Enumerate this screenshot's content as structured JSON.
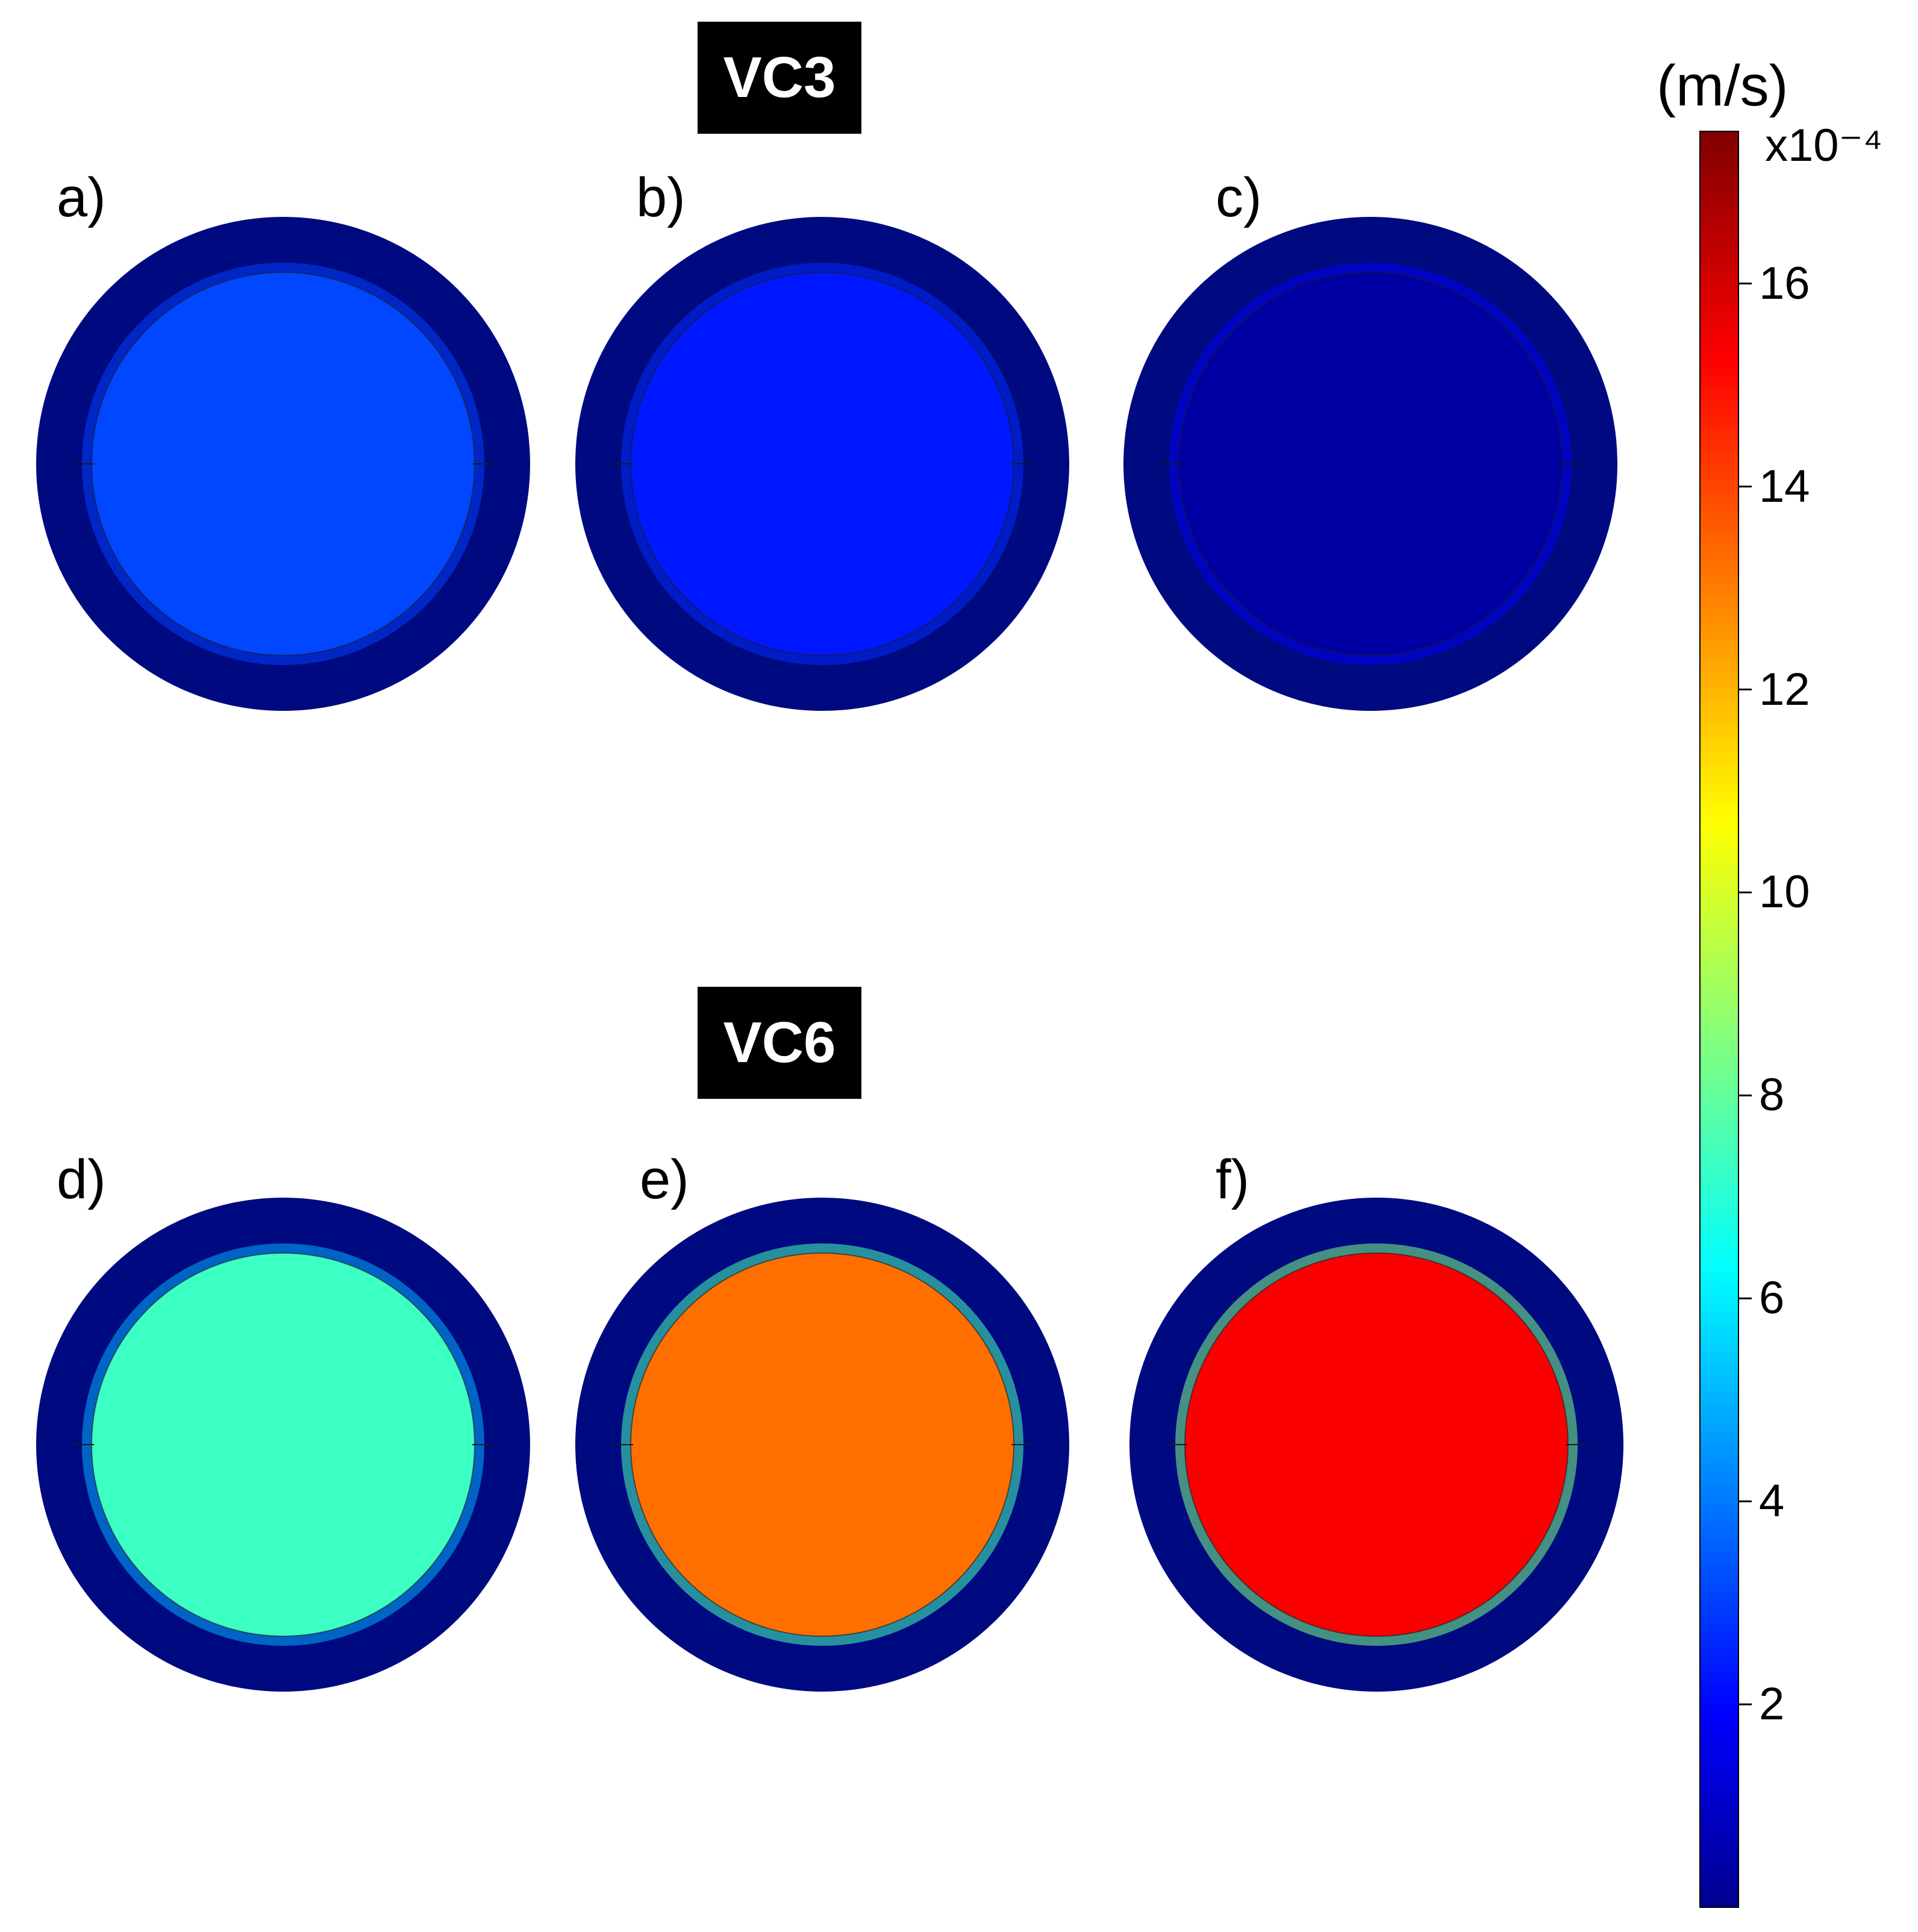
{
  "groups": {
    "vc3": "VC3",
    "vc6": "VC6"
  },
  "panels": [
    {
      "letter": "a)",
      "value": 3.4
    },
    {
      "letter": "b)",
      "value": 2.6
    },
    {
      "letter": "c)",
      "value": 0.6
    },
    {
      "letter": "d)",
      "value": 7.6
    },
    {
      "letter": "e)",
      "value": 13.4
    },
    {
      "letter": "f)",
      "value": 15.4
    }
  ],
  "colorbar": {
    "unit": "(m/s)",
    "exponent": "x10⁻⁴",
    "min": 0,
    "max": 17.5,
    "ticks": [
      "2",
      "4",
      "6",
      "8",
      "10",
      "12",
      "14",
      "16"
    ],
    "colormap": "jet"
  },
  "colors": {
    "outer_ring": "#000a80",
    "background": "#ffffff"
  }
}
